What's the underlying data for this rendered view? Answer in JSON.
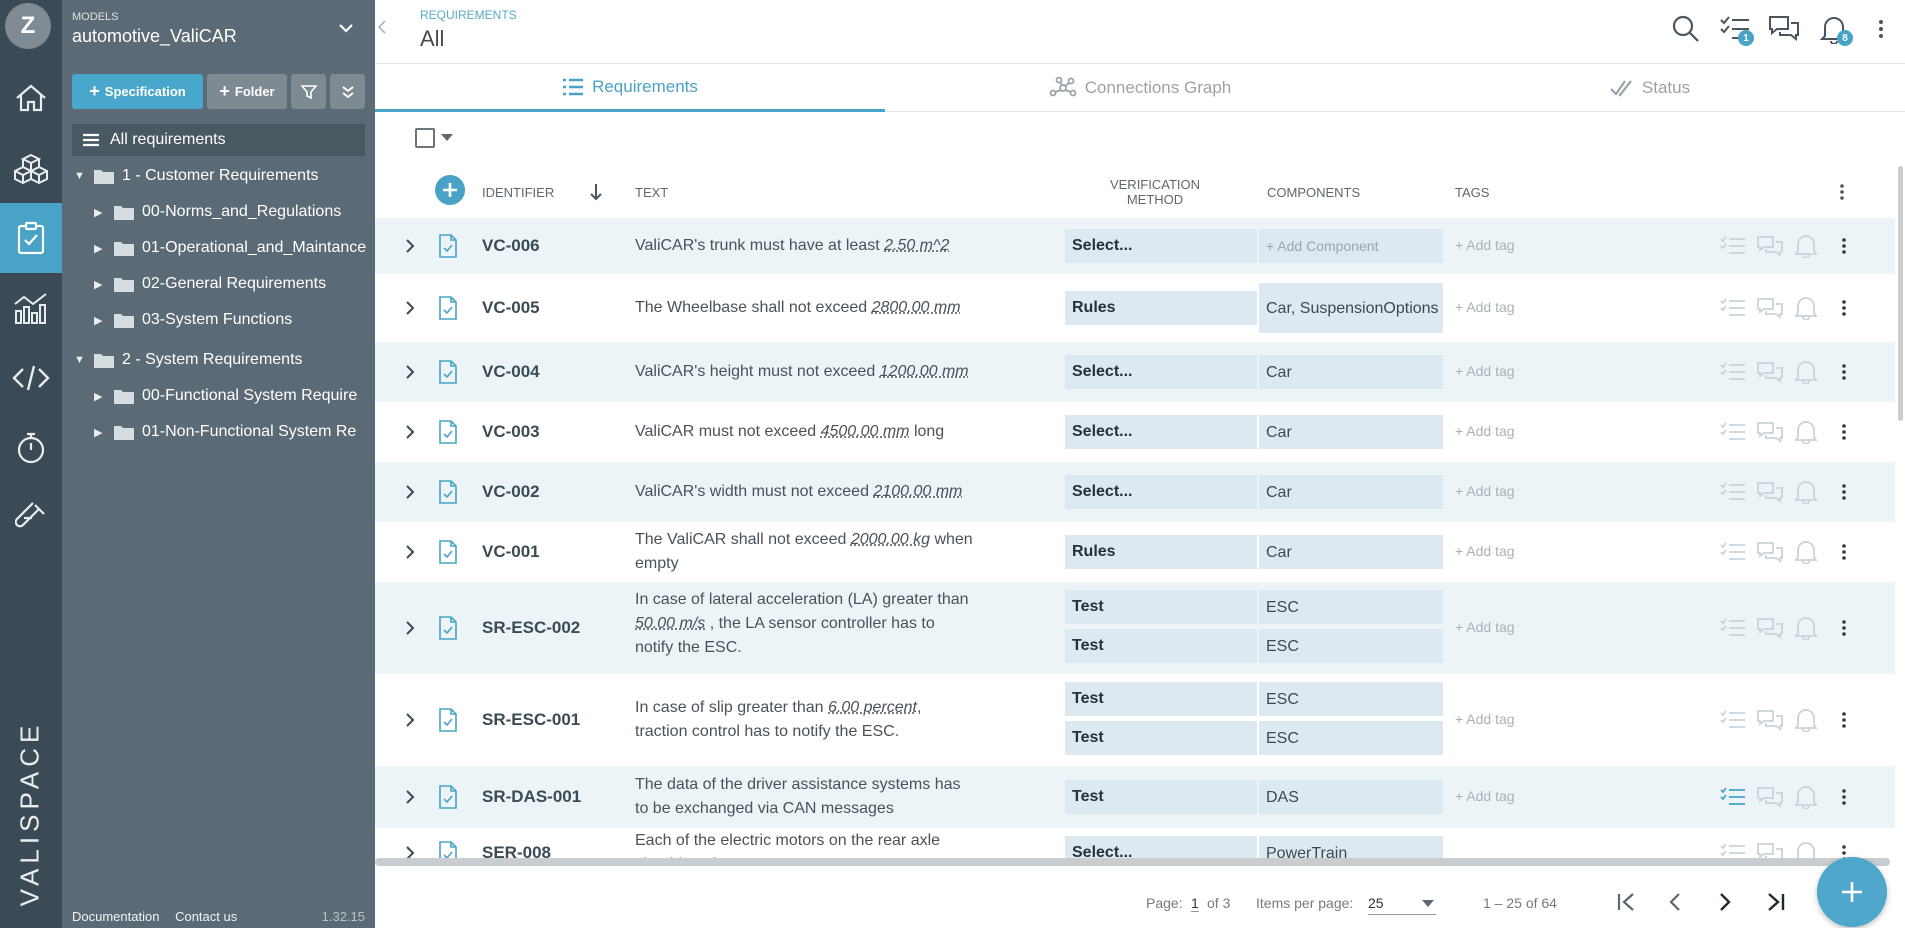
{
  "user": {
    "initial": "Z"
  },
  "brand": "VALISPACE",
  "rail": {
    "icons": [
      "home-icon",
      "cubes-icon",
      "requirements-icon",
      "analytics-icon",
      "code-icon",
      "timer-icon",
      "test-tube-icon"
    ],
    "active": "requirements-icon"
  },
  "models": {
    "label": "MODELS",
    "value": "automotive_ValiCAR"
  },
  "toolbar": {
    "specification": "Specification",
    "folder": "Folder"
  },
  "tree": {
    "all": "All requirements",
    "nodes": [
      {
        "label": "1 - Customer Requirements",
        "expanded": true
      },
      {
        "label": "00-Norms_and_Regulations"
      },
      {
        "label": "01-Operational_and_Maintance"
      },
      {
        "label": "02-General Requirements"
      },
      {
        "label": "03-System Functions"
      },
      {
        "label": "2 - System Requirements",
        "expanded": true
      },
      {
        "label": "00-Functional System Require"
      },
      {
        "label": "01-Non-Functional System Re"
      }
    ]
  },
  "footer": {
    "documentation": "Documentation",
    "contact": "Contact us",
    "version": "1.32.15"
  },
  "header": {
    "crumb": "REQUIREMENTS",
    "title": "All",
    "badges": {
      "tasks": "1",
      "notifications": "8"
    }
  },
  "tabs": [
    "Requirements",
    "Connections Graph",
    "Status"
  ],
  "columns": {
    "identifier": "IDENTIFIER",
    "text": "TEXT",
    "verification1": "VERIFICATION",
    "verification2": "METHOD",
    "components": "COMPONENTS",
    "tags": "TAGS"
  },
  "rows": [
    {
      "id": "VC-006",
      "text": [
        "ValiCAR's trunk must have at least ",
        "2.50 m^2",
        ""
      ],
      "vm": [
        "Select..."
      ],
      "cm": [
        "+ Add Component"
      ],
      "tag": "+ Add tag"
    },
    {
      "id": "VC-005",
      "text": [
        "The Wheelbase shall not exceed ",
        "2800.00 mm",
        ""
      ],
      "vm": [
        "Rules"
      ],
      "cm": [
        "Car, SuspensionOptions"
      ],
      "tag": "+ Add tag"
    },
    {
      "id": "VC-004",
      "text": [
        "ValiCAR's height must not exceed ",
        "1200.00 mm",
        ""
      ],
      "vm": [
        "Select..."
      ],
      "cm": [
        "Car"
      ],
      "tag": "+ Add tag"
    },
    {
      "id": "VC-003",
      "text": [
        "ValiCAR must not exceed ",
        "4500.00 mm",
        " long"
      ],
      "vm": [
        "Select..."
      ],
      "cm": [
        "Car"
      ],
      "tag": "+ Add tag"
    },
    {
      "id": "VC-002",
      "text": [
        "ValiCAR's width must not exceed ",
        "2100.00 mm",
        ""
      ],
      "vm": [
        "Select..."
      ],
      "cm": [
        "Car"
      ],
      "tag": "+ Add tag"
    },
    {
      "id": "VC-001",
      "text": [
        "The ValiCAR shall not exceed ",
        "2000.00 kg",
        " when empty"
      ],
      "vm": [
        "Rules"
      ],
      "cm": [
        "Car"
      ],
      "tag": "+ Add tag"
    },
    {
      "id": "SR-ESC-002",
      "text": [
        "In case of lateral acceleration (LA) greater than ",
        "50.00 m/s",
        " , the LA sensor controller has to notify the ESC."
      ],
      "vm": [
        "Test",
        "Test"
      ],
      "cm": [
        "ESC",
        "ESC"
      ],
      "tag": "+ Add tag"
    },
    {
      "id": "SR-ESC-001",
      "text": [
        "In case of slip greater than ",
        "6.00 percent",
        ", traction control has to notify the ESC."
      ],
      "vm": [
        "Test",
        "Test"
      ],
      "cm": [
        "ESC",
        "ESC"
      ],
      "tag": "+ Add tag"
    },
    {
      "id": "SR-DAS-001",
      "text": [
        "The data of the driver assistance systems has to be exchanged via CAN messages",
        "",
        ""
      ],
      "vm": [
        "Test"
      ],
      "cm": [
        "DAS"
      ],
      "tag": "+ Add tag"
    },
    {
      "id": "SER-008",
      "text": [
        "Each of the electric motors on the rear axle should peak",
        "",
        ""
      ],
      "vm": [
        "Select..."
      ],
      "cm": [
        "PowerTrain"
      ],
      "tag": ""
    }
  ],
  "pager": {
    "page_label": "Page:",
    "page": "1",
    "of": "of 3",
    "ipp_label": "Items per page:",
    "ipp": "25",
    "range": "1 – 25 of 64"
  }
}
